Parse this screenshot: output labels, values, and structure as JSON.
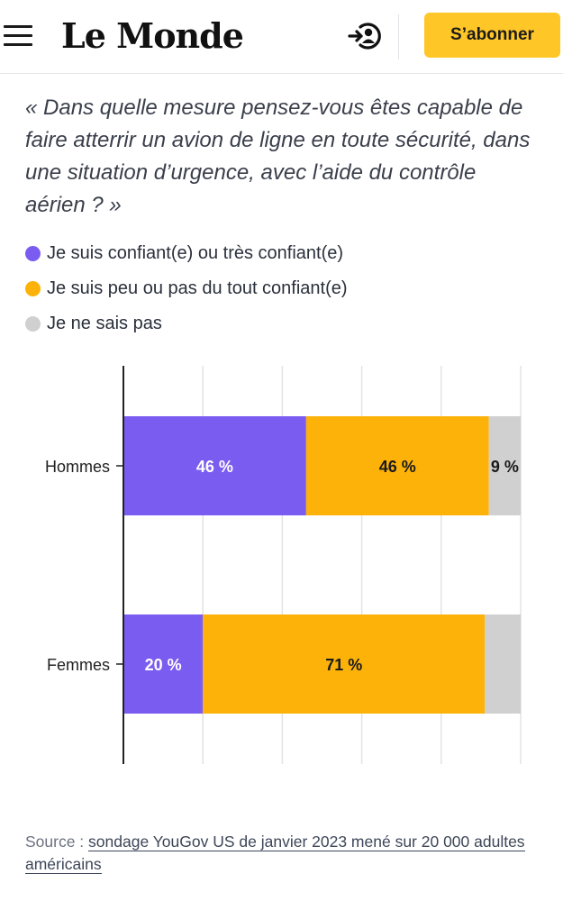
{
  "header": {
    "logo_text": "Le Monde",
    "subscribe_label": "S’abonner",
    "accent_color": "#ffc627"
  },
  "question": "« Dans quelle mesure pensez-vous êtes capable de faire atterrir un avion de ligne en toute sécurité, dans une situation d’urgence, avec l’aide du contrôle aérien ? »",
  "legend": [
    {
      "label": "Je suis confiant(e) ou très confiant(e)",
      "color": "#7b5cf0"
    },
    {
      "label": "Je suis peu ou pas du tout confiant(e)",
      "color": "#fdb20a"
    },
    {
      "label": "Je ne sais pas",
      "color": "#d0d0d0"
    }
  ],
  "chart_data": {
    "type": "bar",
    "orientation": "horizontal",
    "stacked": true,
    "categories": [
      "Hommes",
      "Femmes"
    ],
    "series": [
      {
        "name": "Je suis confiant(e) ou très confiant(e)",
        "color": "#7b5cf0",
        "values": [
          46,
          20
        ],
        "labels": [
          "46 %",
          "20 %"
        ]
      },
      {
        "name": "Je suis peu ou pas du tout confiant(e)",
        "color": "#fdb20a",
        "values": [
          46,
          71
        ],
        "labels": [
          "46 %",
          "71 %"
        ]
      },
      {
        "name": "Je ne sais pas",
        "color": "#d0d0d0",
        "values": [
          9,
          10
        ],
        "labels": [
          "9 %",
          ""
        ]
      }
    ],
    "xlim": [
      0,
      100
    ],
    "x_gridlines": [
      0,
      20,
      40,
      60,
      80,
      100
    ],
    "grid": true,
    "legend_position": "top"
  },
  "source": {
    "prefix": "Source : ",
    "link_text": "sondage YouGov US de janvier 2023 mené sur 20 000 adultes américains"
  }
}
